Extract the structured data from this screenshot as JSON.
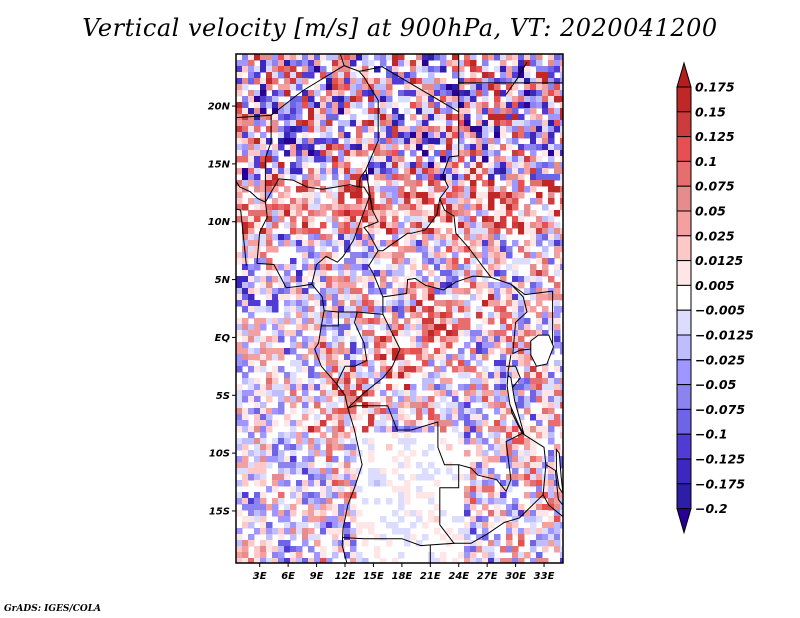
{
  "title": "Vertical velocity [m/s] at 900hPa, VT: 2020041200",
  "footer": "GrADS: IGES/COLA",
  "chart_data": {
    "type": "heatmap",
    "title": "Vertical velocity [m/s] at 900hPa, VT: 2020041200",
    "variable": "Vertical velocity",
    "units": "m/s",
    "level": "900hPa",
    "valid_time": "2020041200",
    "projection": "lat-lon",
    "lon_range": [
      0.5,
      35
    ],
    "lat_range": [
      -19.5,
      24.5
    ],
    "x_ticks": [
      {
        "value": 3,
        "label": "3E"
      },
      {
        "value": 6,
        "label": "6E"
      },
      {
        "value": 9,
        "label": "9E"
      },
      {
        "value": 12,
        "label": "12E"
      },
      {
        "value": 15,
        "label": "15E"
      },
      {
        "value": 18,
        "label": "18E"
      },
      {
        "value": 21,
        "label": "21E"
      },
      {
        "value": 24,
        "label": "24E"
      },
      {
        "value": 27,
        "label": "27E"
      },
      {
        "value": 30,
        "label": "30E"
      },
      {
        "value": 33,
        "label": "33E"
      }
    ],
    "y_ticks": [
      {
        "value": 20,
        "label": "20N"
      },
      {
        "value": 15,
        "label": "15N"
      },
      {
        "value": 10,
        "label": "10N"
      },
      {
        "value": 5,
        "label": "5N"
      },
      {
        "value": 0,
        "label": "EQ"
      },
      {
        "value": -5,
        "label": "5S"
      },
      {
        "value": -10,
        "label": "10S"
      },
      {
        "value": -15,
        "label": "15S"
      }
    ],
    "colorbar": {
      "orientation": "vertical",
      "position": "right",
      "extend": "both",
      "labels": [
        "0.175",
        "0.15",
        "0.125",
        "0.1",
        "0.075",
        "0.05",
        "0.025",
        "0.0125",
        "0.005",
        "-0.005",
        "-0.0125",
        "-0.025",
        "-0.05",
        "-0.075",
        "-0.1",
        "-0.125",
        "-0.175",
        "-0.2"
      ],
      "colors_top_to_bottom": [
        "#b41e1e",
        "#c02828",
        "#cd3c3c",
        "#e65050",
        "#e66e6e",
        "#e68c8c",
        "#f5a0a0",
        "#ffc8c8",
        "#ffe6e6",
        "#ffffff",
        "#dcdcff",
        "#bebeff",
        "#a096ff",
        "#8c82f0",
        "#6e64e6",
        "#503cd2",
        "#3c28be",
        "#2d1eaa",
        "#280096"
      ]
    },
    "features": [
      "country-borders",
      "coastlines",
      "lakes"
    ],
    "notable_patterns": [
      "positive (red) bands along Sahel ~10-13N",
      "mixed red/blue fine-scale structure over Sahara",
      "positive streaks along Congo basin SW-NE ~5S-5N",
      "largely near-zero (white) over Angola/Zambia interior",
      "negative (blue) over Atlantic Gulf of Guinea patches"
    ]
  }
}
